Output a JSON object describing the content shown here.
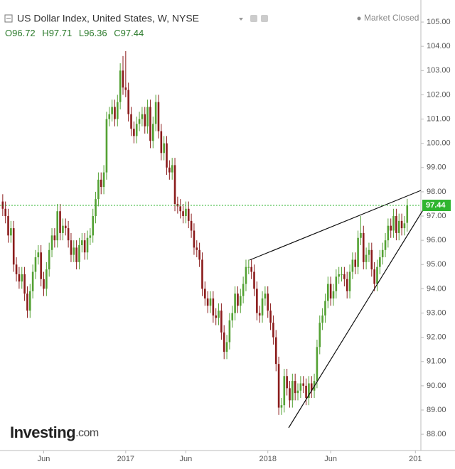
{
  "chart_data": {
    "type": "candlestick",
    "title": "US Dollar Index, United States, W, NYSE",
    "status": "Market Closed",
    "ohlc_labels": [
      "O",
      "H",
      "L",
      "C"
    ],
    "logo": {
      "name": "Investing",
      "suffix": ".com"
    },
    "up_color": "#53a133",
    "down_color": "#8b1c1c",
    "price_line_color": "#2fb52f",
    "grid": false,
    "xlim": [
      -1,
      153
    ],
    "xticks": [
      {
        "value": 15,
        "label": "Jun"
      },
      {
        "value": 45,
        "label": "2017"
      },
      {
        "value": 67,
        "label": "Jun"
      },
      {
        "value": 97,
        "label": "2018"
      },
      {
        "value": 120,
        "label": "Jun"
      },
      {
        "value": 151,
        "label": "201"
      }
    ],
    "ylim": [
      87.33,
      105.91
    ],
    "yticks": [
      {
        "value": 88,
        "label": "88.00"
      },
      {
        "value": 89,
        "label": "89.00"
      },
      {
        "value": 90,
        "label": "90.00"
      },
      {
        "value": 91,
        "label": "91.00"
      },
      {
        "value": 92,
        "label": "92.00"
      },
      {
        "value": 93,
        "label": "93.00"
      },
      {
        "value": 94,
        "label": "94.00"
      },
      {
        "value": 95,
        "label": "95.00"
      },
      {
        "value": 96,
        "label": "96.00"
      },
      {
        "value": 97,
        "label": "97.00"
      },
      {
        "value": 98,
        "label": "98.00"
      },
      {
        "value": 99,
        "label": "99.00"
      },
      {
        "value": 100,
        "label": "100.00"
      },
      {
        "value": 101,
        "label": "101.00"
      },
      {
        "value": 102,
        "label": "102.00"
      },
      {
        "value": 103,
        "label": "103.00"
      },
      {
        "value": 104,
        "label": "104.00"
      },
      {
        "value": 105,
        "label": "105.00"
      }
    ],
    "open": [
      97.6,
      97.3,
      97.0,
      96.2,
      96.5,
      95.0,
      94.6,
      94.3,
      94.6,
      93.8,
      93.1,
      93.9,
      94.7,
      95.3,
      95.5,
      94.4,
      94.0,
      94.8,
      95.6,
      96.2,
      96.0,
      97.2,
      96.3,
      96.6,
      96.5,
      96.0,
      95.4,
      95.7,
      95.1,
      95.8,
      96.0,
      95.5,
      96.1,
      96.2,
      97.0,
      97.7,
      98.5,
      98.2,
      98.8,
      101.0,
      101.2,
      101.5,
      101.0,
      101.7,
      103.0,
      102.3,
      102.2,
      101.2,
      100.6,
      100.3,
      100.8,
      101.0,
      101.2,
      100.7,
      101.5,
      100.1,
      100.8,
      101.7,
      100.5,
      99.6,
      100.0,
      99.0,
      98.8,
      99.1,
      97.5,
      97.4,
      97.2,
      97.0,
      97.3,
      96.8,
      96.4,
      95.7,
      95.6,
      95.2,
      94.0,
      93.6,
      93.3,
      93.6,
      92.9,
      92.8,
      93.1,
      92.2,
      91.4,
      91.8,
      92.7,
      93.0,
      93.8,
      93.3,
      93.7,
      94.2,
      94.9,
      94.9,
      94.7,
      94.0,
      93.0,
      92.9,
      93.6,
      93.8,
      93.1,
      92.6,
      92.0,
      90.9,
      89.1,
      89.2,
      90.4,
      89.9,
      89.4,
      90.2,
      89.7,
      89.8,
      90.1,
      90.0,
      89.5,
      90.1,
      89.8,
      90.2,
      91.6,
      92.6,
      92.9,
      93.5,
      94.2,
      93.6,
      93.9,
      94.5,
      94.6,
      94.6,
      94.4,
      93.9,
      94.7,
      95.2,
      94.9,
      96.1,
      96.3,
      95.1,
      95.4,
      95.6,
      94.8,
      94.2,
      94.9,
      95.3,
      95.6,
      96.0,
      96.6,
      96.4,
      97.0,
      96.3,
      96.8,
      96.5,
      96.72
    ],
    "high": [
      97.9,
      97.6,
      97.3,
      96.8,
      96.8,
      95.3,
      94.9,
      94.9,
      94.9,
      94.1,
      94.2,
      95.0,
      95.6,
      95.8,
      95.8,
      94.7,
      95.1,
      95.9,
      96.5,
      96.5,
      97.5,
      97.5,
      96.9,
      96.9,
      96.8,
      96.3,
      96.0,
      96.0,
      96.1,
      96.3,
      96.3,
      96.4,
      96.5,
      97.3,
      98.0,
      98.8,
      98.8,
      99.1,
      101.3,
      101.5,
      101.8,
      101.8,
      102.0,
      103.3,
      103.6,
      103.8,
      102.5,
      101.5,
      100.9,
      101.1,
      101.3,
      101.5,
      101.5,
      101.8,
      101.8,
      101.1,
      102.0,
      102.0,
      100.8,
      100.3,
      100.3,
      99.3,
      99.4,
      99.4,
      97.8,
      97.7,
      97.5,
      97.6,
      97.6,
      97.1,
      96.7,
      96.0,
      95.9,
      95.5,
      94.3,
      93.9,
      93.9,
      93.9,
      93.2,
      93.4,
      93.4,
      92.5,
      92.1,
      93.0,
      93.3,
      94.1,
      94.1,
      94.0,
      94.5,
      95.2,
      95.2,
      95.2,
      95.0,
      94.3,
      93.3,
      93.9,
      94.1,
      94.1,
      93.4,
      92.9,
      92.3,
      91.2,
      89.5,
      90.7,
      90.7,
      90.2,
      90.5,
      90.5,
      90.1,
      90.4,
      90.4,
      90.3,
      90.4,
      90.4,
      90.5,
      91.9,
      92.9,
      93.2,
      93.8,
      94.5,
      94.5,
      94.2,
      94.8,
      94.9,
      94.9,
      94.9,
      94.7,
      95.0,
      95.5,
      95.5,
      96.4,
      97.0,
      96.6,
      95.7,
      95.9,
      95.9,
      95.1,
      95.2,
      95.6,
      95.9,
      96.3,
      96.9,
      96.9,
      97.3,
      97.3,
      97.1,
      97.1,
      97.0,
      97.71
    ],
    "low": [
      97.0,
      96.7,
      95.9,
      95.9,
      94.7,
      94.3,
      94.0,
      94.0,
      93.5,
      92.8,
      92.8,
      93.6,
      94.4,
      95.0,
      94.1,
      93.7,
      93.7,
      94.5,
      95.3,
      95.7,
      95.7,
      96.0,
      96.0,
      96.2,
      95.7,
      95.1,
      95.1,
      94.8,
      94.8,
      95.5,
      95.2,
      95.2,
      95.8,
      95.9,
      96.7,
      97.4,
      97.9,
      97.9,
      98.5,
      100.7,
      100.9,
      100.7,
      100.7,
      101.4,
      102.0,
      101.9,
      100.9,
      100.3,
      100.0,
      100.0,
      100.5,
      100.7,
      100.4,
      100.4,
      99.8,
      99.8,
      100.5,
      100.2,
      99.3,
      99.3,
      98.7,
      98.5,
      98.5,
      97.2,
      97.1,
      96.9,
      96.7,
      96.7,
      96.5,
      96.1,
      95.4,
      95.3,
      94.9,
      93.7,
      93.3,
      93.0,
      93.0,
      92.6,
      92.5,
      92.5,
      91.9,
      91.1,
      91.1,
      91.5,
      92.4,
      92.7,
      93.0,
      93.0,
      93.4,
      93.9,
      94.6,
      94.4,
      93.7,
      92.7,
      92.6,
      92.6,
      93.3,
      92.8,
      92.3,
      91.7,
      90.6,
      88.8,
      88.8,
      88.9,
      89.6,
      89.1,
      89.1,
      89.4,
      89.4,
      89.5,
      89.7,
      89.2,
      89.2,
      89.5,
      89.5,
      89.9,
      91.3,
      92.3,
      92.6,
      93.2,
      93.3,
      93.3,
      93.6,
      94.2,
      94.3,
      94.1,
      93.6,
      93.6,
      94.4,
      94.6,
      94.6,
      95.8,
      94.8,
      94.8,
      95.1,
      94.5,
      93.9,
      93.9,
      94.6,
      95.0,
      95.3,
      95.7,
      96.1,
      96.1,
      96.0,
      96.0,
      96.2,
      96.2,
      96.36
    ],
    "close": [
      97.3,
      97.0,
      96.2,
      96.5,
      95.0,
      94.6,
      94.3,
      94.6,
      93.8,
      93.1,
      93.9,
      94.7,
      95.3,
      95.5,
      94.4,
      94.0,
      94.8,
      95.6,
      96.2,
      96.0,
      97.2,
      96.3,
      96.6,
      96.5,
      96.0,
      95.4,
      95.7,
      95.1,
      95.8,
      96.0,
      95.5,
      96.1,
      96.2,
      97.0,
      97.7,
      98.5,
      98.2,
      98.8,
      101.0,
      101.2,
      101.5,
      101.0,
      101.7,
      103.0,
      102.3,
      102.2,
      101.2,
      100.6,
      100.3,
      100.8,
      101.0,
      101.2,
      100.7,
      101.5,
      100.1,
      100.8,
      101.7,
      100.5,
      99.6,
      100.0,
      99.0,
      98.8,
      99.1,
      97.5,
      97.4,
      97.2,
      97.0,
      97.3,
      96.8,
      96.4,
      95.7,
      95.6,
      95.2,
      94.0,
      93.6,
      93.3,
      93.6,
      92.9,
      92.8,
      93.1,
      92.2,
      91.4,
      91.8,
      92.7,
      93.0,
      93.8,
      93.3,
      93.7,
      94.2,
      94.9,
      94.9,
      94.7,
      94.0,
      93.0,
      92.9,
      93.6,
      93.8,
      93.1,
      92.6,
      92.0,
      90.9,
      89.1,
      89.2,
      90.4,
      89.9,
      89.4,
      90.2,
      89.7,
      89.8,
      90.1,
      90.0,
      89.5,
      90.1,
      89.8,
      90.2,
      91.6,
      92.6,
      92.9,
      93.5,
      94.2,
      93.6,
      93.9,
      94.5,
      94.6,
      94.6,
      94.4,
      93.9,
      94.7,
      95.2,
      94.9,
      96.1,
      96.3,
      95.1,
      95.4,
      95.6,
      94.8,
      94.2,
      94.9,
      95.3,
      95.6,
      96.0,
      96.6,
      96.4,
      97.0,
      96.3,
      96.8,
      96.5,
      96.7,
      97.44
    ]
  }
}
